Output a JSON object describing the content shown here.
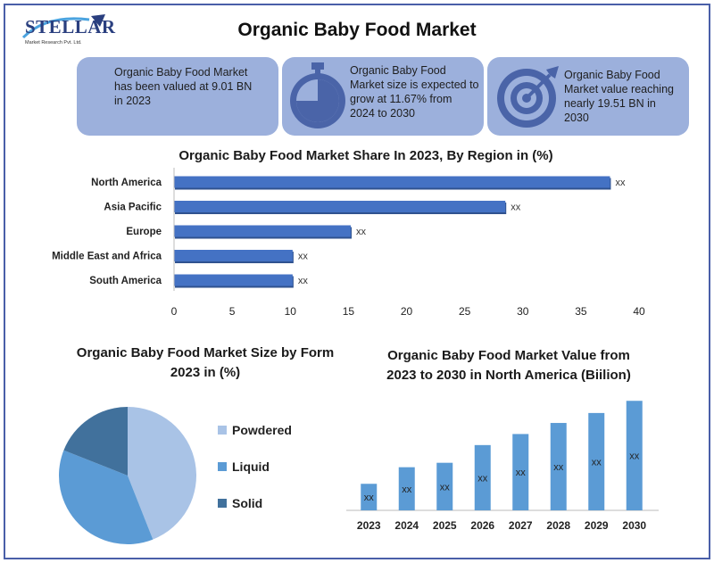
{
  "brand": {
    "name": "STELLAR",
    "sub": "Market Research Pvt. Ltd."
  },
  "title": "Organic Baby Food Market",
  "cards": [
    {
      "text_lines": [
        "Organic Baby Food Market",
        "has been valued at 9.01 BN",
        "in 2023"
      ]
    },
    {
      "text_lines": [
        "Organic Baby Food",
        "Market size is expected to",
        "grow at 11.67% from",
        "2024 to 2030"
      ],
      "icon": "stopwatch-icon"
    },
    {
      "text_lines": [
        "Organic Baby Food",
        "Market value reaching",
        "nearly 19.51 BN in",
        "2030"
      ],
      "icon": "target-icon"
    }
  ],
  "colors": {
    "card_bg": "#9cb0dc",
    "bar": "#4472c4",
    "bar_dark": "#2f528f",
    "border": "#4a5fa8"
  },
  "chart_data": [
    {
      "type": "bar",
      "orientation": "horizontal",
      "title": "Organic Baby Food Market Share In 2023, By Region in (%)",
      "categories": [
        "North America",
        "Asia Pacific",
        "Europe",
        "Middle East and Africa",
        "South America"
      ],
      "values": [
        37.5,
        28.5,
        15.2,
        10.2,
        10.2
      ],
      "data_labels": [
        "xx",
        "xx",
        "xx",
        "xx",
        "xx"
      ],
      "xticks": [
        "0",
        "5",
        "10",
        "15",
        "20",
        "25",
        "30",
        "35",
        "40"
      ],
      "xlim": [
        0,
        40
      ]
    },
    {
      "type": "pie",
      "title_lines": [
        "Organic Baby Food Market Size by Form",
        "2023 in (%)"
      ],
      "series": [
        {
          "name": "Powdered",
          "value": 44,
          "color": "#a9c3e6"
        },
        {
          "name": "Liquid",
          "value": 37,
          "color": "#5b9bd5"
        },
        {
          "name": "Solid",
          "value": 19,
          "color": "#41719c"
        }
      ]
    },
    {
      "type": "bar",
      "orientation": "vertical",
      "title_lines": [
        "Organic Baby Food Market Value from",
        "2023 to 2030 in North America (Biilion)"
      ],
      "categories": [
        "2023",
        "2024",
        "2025",
        "2026",
        "2027",
        "2028",
        "2029",
        "2030"
      ],
      "values": [
        2.4,
        3.9,
        4.3,
        5.9,
        6.9,
        7.9,
        8.8,
        9.9
      ],
      "data_labels": [
        "xx",
        "xx",
        "xx",
        "xx",
        "xx",
        "xx",
        "xx",
        "xx"
      ],
      "ylim": [
        0,
        10
      ]
    }
  ]
}
